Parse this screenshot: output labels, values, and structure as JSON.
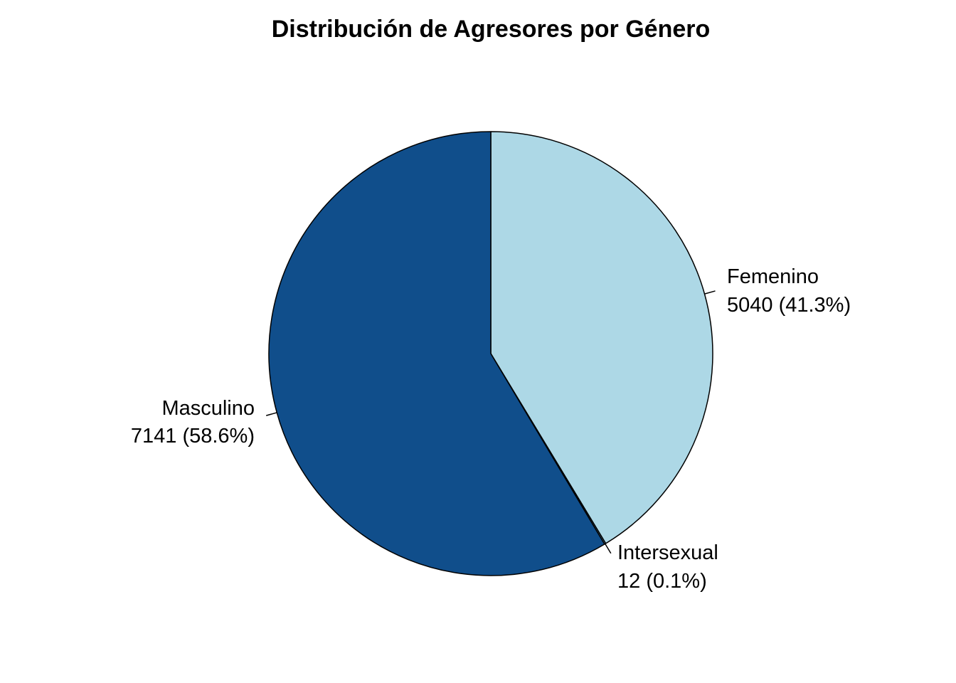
{
  "chart_data": {
    "type": "pie",
    "title": "Distribución de Agresores por Género",
    "start_angle_deg": 90,
    "direction": "clockwise",
    "slices": [
      {
        "name": "Femenino",
        "value": 5040,
        "value_label": "5040 (41.3%)",
        "color": "#add8e6"
      },
      {
        "name": "Intersexual",
        "value": 12,
        "value_label": "12 (0.1%)",
        "color": "#6baed6"
      },
      {
        "name": "Masculino",
        "value": 7141,
        "value_label": "7141 (58.6%)",
        "color": "#104e8b"
      }
    ]
  }
}
